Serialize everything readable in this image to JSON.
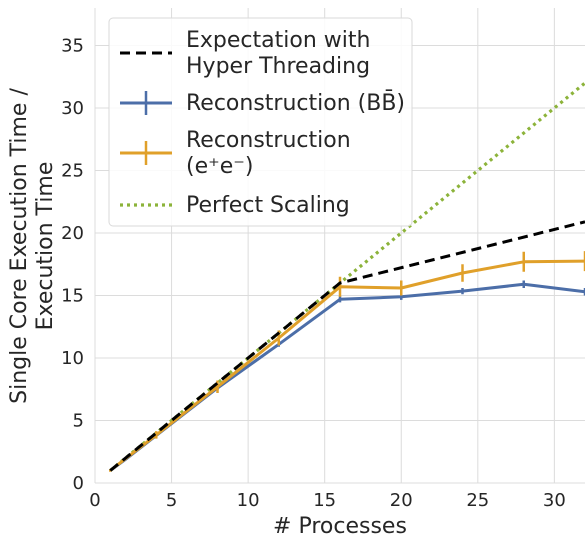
{
  "chart_data": {
    "type": "line",
    "xlabel": "# Processes",
    "ylabel_lines": [
      "Single Core Execution Time /",
      "Execution Time"
    ],
    "xlim": [
      0,
      32
    ],
    "ylim": [
      0,
      38
    ],
    "x_ticks": [
      0,
      5,
      10,
      15,
      20,
      25,
      30
    ],
    "y_ticks": [
      0,
      5,
      10,
      15,
      20,
      25,
      30,
      35
    ],
    "grid": true,
    "legend_position": "top-left",
    "series": [
      {
        "name": "Expectation with Hyper Threading",
        "legend_lines": [
          "Expectation with",
          "Hyper Threading"
        ],
        "style": "dashed",
        "color": "#000000",
        "x": [
          1,
          16,
          32
        ],
        "y": [
          1,
          16,
          20.9
        ],
        "errors": []
      },
      {
        "name": "Reconstruction (BB̄)",
        "legend_lines": [
          "Reconstruction (BB̄)"
        ],
        "style": "solid",
        "color": "#4c6ea8",
        "x": [
          1,
          2,
          4,
          8,
          12,
          16,
          20,
          24,
          28,
          32
        ],
        "y": [
          1,
          1.9,
          3.8,
          7.6,
          11.1,
          14.7,
          14.9,
          15.35,
          15.9,
          15.3
        ],
        "errors": [
          0.05,
          0.05,
          0.1,
          0.15,
          0.2,
          0.25,
          0.25,
          0.25,
          0.3,
          0.3
        ]
      },
      {
        "name": "Reconstruction (e+e−)",
        "legend_lines": [
          "Reconstruction",
          "(e⁺e⁻)"
        ],
        "style": "solid",
        "color": "#e0a02a",
        "x": [
          1,
          2,
          4,
          8,
          12,
          16,
          20,
          24,
          28,
          32
        ],
        "y": [
          1,
          1.95,
          3.85,
          7.7,
          11.6,
          15.7,
          15.6,
          16.8,
          17.7,
          17.75
        ],
        "errors": [
          0.1,
          0.1,
          0.3,
          0.5,
          0.6,
          0.8,
          0.6,
          0.7,
          0.8,
          0.8
        ]
      },
      {
        "name": "Perfect Scaling",
        "legend_lines": [
          "Perfect Scaling"
        ],
        "style": "dotted",
        "color": "#8cb33a",
        "x": [
          1,
          32
        ],
        "y": [
          1,
          32
        ],
        "errors": []
      }
    ]
  }
}
